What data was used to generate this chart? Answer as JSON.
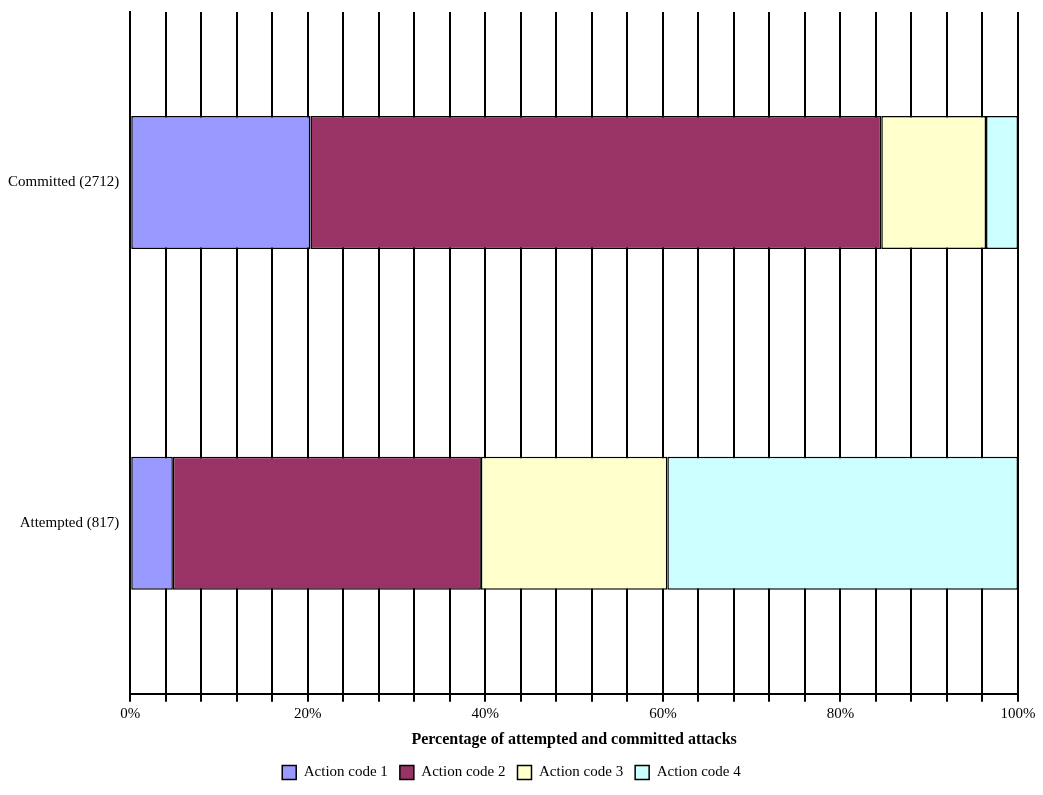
{
  "chart_data": {
    "type": "bar",
    "orientation": "horizontal",
    "stacked": true,
    "xlabel": "Percentage of attempted and committed attacks",
    "categories": [
      "Committed (2712)",
      "Attempted (817)"
    ],
    "series": [
      {
        "name": "Action code 1",
        "color": "#9999ff",
        "values": [
          20.3,
          4.8
        ]
      },
      {
        "name": "Action code 2",
        "color": "#993366",
        "values": [
          64.3,
          34.7
        ]
      },
      {
        "name": "Action code 3",
        "color": "#ffffcc",
        "values": [
          11.8,
          21.0
        ]
      },
      {
        "name": "Action code 4",
        "color": "#ccffff",
        "values": [
          3.6,
          39.5
        ]
      }
    ],
    "xlim": [
      0,
      100
    ],
    "xticks": [
      {
        "value": 0,
        "label": "0%"
      },
      {
        "value": 4,
        "label": null
      },
      {
        "value": 8,
        "label": null
      },
      {
        "value": 12,
        "label": null
      },
      {
        "value": 16,
        "label": null
      },
      {
        "value": 20,
        "label": "20%"
      },
      {
        "value": 24,
        "label": null
      },
      {
        "value": 28,
        "label": null
      },
      {
        "value": 32,
        "label": null
      },
      {
        "value": 36,
        "label": null
      },
      {
        "value": 40,
        "label": "40%"
      },
      {
        "value": 44,
        "label": null
      },
      {
        "value": 48,
        "label": null
      },
      {
        "value": 52,
        "label": null
      },
      {
        "value": 56,
        "label": null
      },
      {
        "value": 60,
        "label": "60%"
      },
      {
        "value": 64,
        "label": null
      },
      {
        "value": 68,
        "label": null
      },
      {
        "value": 72,
        "label": null
      },
      {
        "value": 76,
        "label": null
      },
      {
        "value": 80,
        "label": "80%"
      },
      {
        "value": 84,
        "label": null
      },
      {
        "value": 88,
        "label": null
      },
      {
        "value": 92,
        "label": null
      },
      {
        "value": 96,
        "label": null
      },
      {
        "value": 100,
        "label": "100%"
      }
    ],
    "grid": "x",
    "legend": "bottom"
  }
}
